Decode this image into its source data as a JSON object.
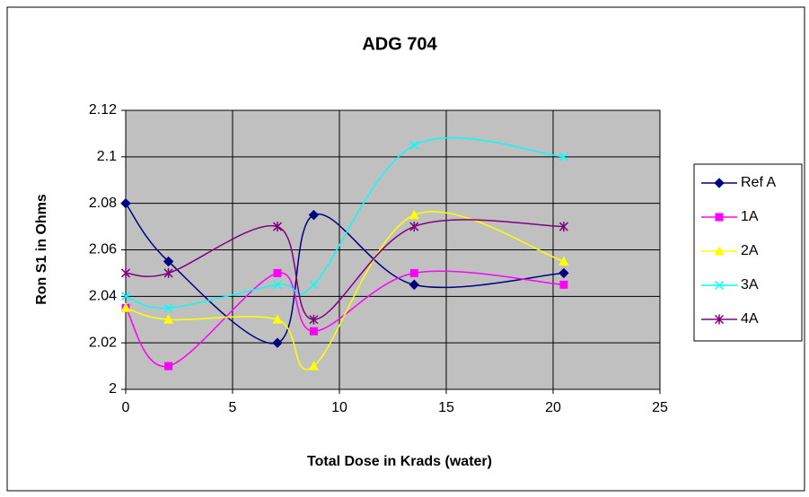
{
  "chart_data": {
    "type": "scatter-smooth",
    "title": "ADG 704",
    "x_label": "Total Dose in Krads (water)",
    "y_label": "Ron S1 in Ohms",
    "x": [
      0,
      2,
      7.1,
      8.8,
      13.5,
      20.5
    ],
    "series": [
      {
        "name": "Ref A",
        "color": "#000080",
        "marker": "diamond",
        "values": [
          2.08,
          2.055,
          2.02,
          2.075,
          2.045,
          2.05
        ]
      },
      {
        "name": "1A",
        "color": "#ff00ff",
        "marker": "square",
        "values": [
          2.035,
          2.01,
          2.05,
          2.025,
          2.05,
          2.045
        ]
      },
      {
        "name": "2A",
        "color": "#ffff00",
        "marker": "triangle",
        "values": [
          2.035,
          2.03,
          2.03,
          2.01,
          2.075,
          2.055
        ]
      },
      {
        "name": "3A",
        "color": "#00ffff",
        "marker": "x",
        "values": [
          2.04,
          2.035,
          2.045,
          2.045,
          2.105,
          2.1
        ]
      },
      {
        "name": "4A",
        "color": "#800080",
        "marker": "star",
        "values": [
          2.05,
          2.05,
          2.07,
          2.03,
          2.07,
          2.07
        ]
      }
    ],
    "xlim": [
      0,
      25
    ],
    "xticks": [
      0,
      5,
      10,
      15,
      20,
      25
    ],
    "ylim": [
      2,
      2.12
    ],
    "yticks": [
      2,
      2.02,
      2.04,
      2.06,
      2.08,
      2.1,
      2.12
    ],
    "grid": true,
    "legend": "right"
  }
}
